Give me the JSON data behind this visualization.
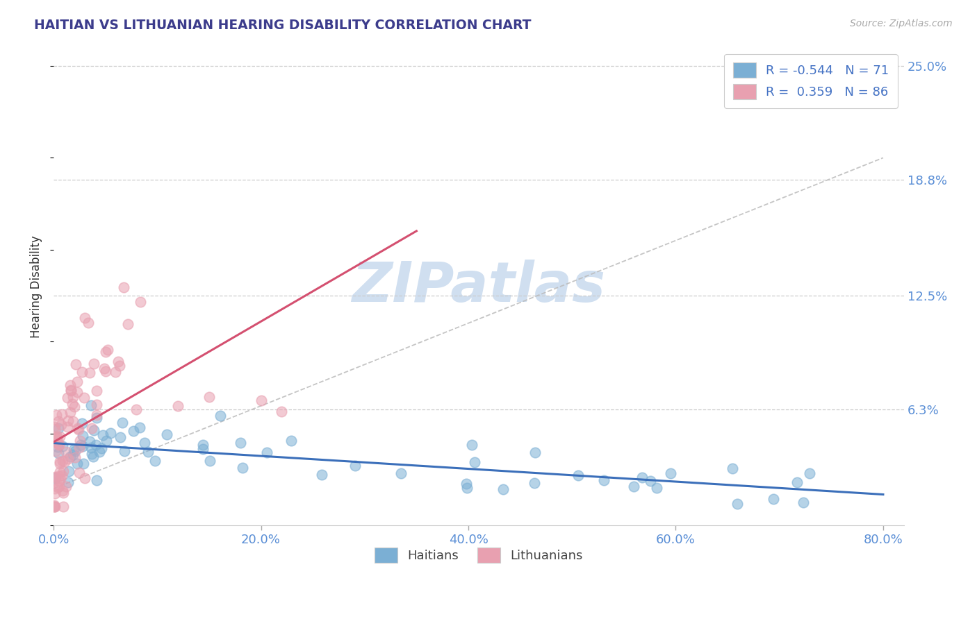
{
  "title": "HAITIAN VS LITHUANIAN HEARING DISABILITY CORRELATION CHART",
  "source": "Source: ZipAtlas.com",
  "xlabel_ticks": [
    "0.0%",
    "20.0%",
    "40.0%",
    "60.0%",
    "80.0%"
  ],
  "xlabel_vals": [
    0.0,
    20.0,
    40.0,
    60.0,
    80.0
  ],
  "ylabel_ticks": [
    "6.3%",
    "12.5%",
    "18.8%",
    "25.0%"
  ],
  "ylabel_vals": [
    6.3,
    12.5,
    18.8,
    25.0
  ],
  "ylabel_label": "Hearing Disability",
  "xlim": [
    0,
    82
  ],
  "ylim": [
    0,
    26
  ],
  "haitian_R": -0.544,
  "haitian_N": 71,
  "lithuanian_R": 0.359,
  "lithuanian_N": 86,
  "blue_color": "#7bafd4",
  "pink_color": "#e8a0b0",
  "blue_line_color": "#3b6fba",
  "pink_line_color": "#d45070",
  "gray_line_color": "#bbbbbb",
  "title_color": "#3c3c8c",
  "axis_label_color": "#333333",
  "axis_tick_color": "#5b8fd6",
  "watermark_color": "#d0dff0",
  "background_color": "#ffffff",
  "legend_R_color": "#4472c4",
  "legend_border_color": "#cccccc"
}
